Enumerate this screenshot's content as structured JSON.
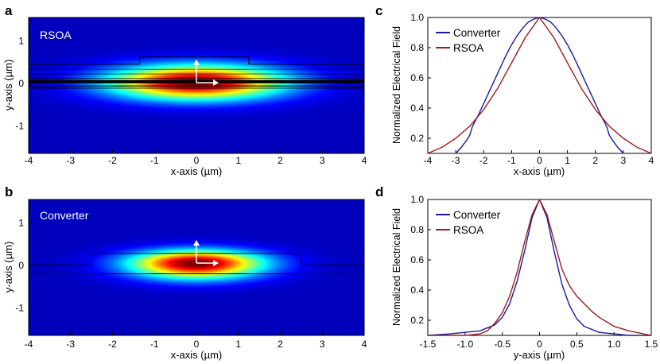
{
  "chart_data": [
    {
      "panel": "a",
      "type": "heatmap",
      "title": "RSOA",
      "xlabel": "x-axis (µm)",
      "ylabel": "y-axis (µm)",
      "xlim": [
        -4,
        4
      ],
      "ylim": [
        -1.65,
        1.55
      ],
      "xticks": [
        "-4",
        "-3",
        "-2",
        "-1",
        "0",
        "1",
        "2",
        "3",
        "4"
      ],
      "yticks": [
        "1",
        "0",
        "-1"
      ],
      "mode": {
        "center_x": 0,
        "center_y": 0.02,
        "sigma_x": 1.45,
        "sigma_y_up": 0.28,
        "sigma_y_down": 0.28
      },
      "outline": [
        [
          -4,
          0.45
        ],
        [
          -1.35,
          0.45
        ],
        [
          -1.35,
          0.62
        ],
        [
          1.25,
          0.62
        ],
        [
          1.25,
          0.45
        ],
        [
          4,
          0.45
        ],
        [
          4,
          -0.08
        ],
        [
          -4,
          -0.08
        ],
        [
          -4,
          0.45
        ]
      ],
      "layers_y": [
        0.33,
        0.22,
        0.12,
        0.04,
        -0.05,
        -0.12
      ]
    },
    {
      "panel": "b",
      "type": "heatmap",
      "title": "Converter",
      "xlabel": "x-axis (µm)",
      "ylabel": "y-axis (µm)",
      "xlim": [
        -4,
        4
      ],
      "ylim": [
        -1.65,
        1.55
      ],
      "xticks": [
        "-4",
        "-3",
        "-2",
        "-1",
        "0",
        "1",
        "2",
        "3",
        "4"
      ],
      "yticks": [
        "1",
        "0",
        "-1"
      ],
      "mode": {
        "center_x": 0,
        "center_y": 0.05,
        "sigma_x": 1.1,
        "sigma_y_up": 0.21,
        "sigma_y_down": 0.25
      },
      "outline": [
        [
          -4,
          0
        ],
        [
          -2.5,
          0
        ],
        [
          -2.5,
          0.28
        ],
        [
          2.5,
          0.28
        ],
        [
          2.5,
          0
        ],
        [
          4,
          0
        ],
        [
          4,
          -0.2
        ],
        [
          -4,
          -0.2
        ],
        [
          -4,
          0
        ]
      ],
      "layers_y": []
    },
    {
      "panel": "c",
      "type": "line",
      "xlabel": "x-axis (µm)",
      "ylabel": "Normalized Electrical Field",
      "xlim": [
        -4,
        4
      ],
      "ylim": [
        0.1,
        1.0
      ],
      "xticks": [
        "-4",
        "-3",
        "-2",
        "-1",
        "0",
        "1",
        "2",
        "3",
        "4"
      ],
      "yticks": [
        "0.2",
        "0.4",
        "0.6",
        "0.8",
        "1.0"
      ],
      "legend": "top-left",
      "series": [
        {
          "name": "Converter",
          "color": "#1a1a9c",
          "x": [
            -3.0,
            -2.8,
            -2.6,
            -2.5,
            -2.4,
            -2.2,
            -2.0,
            -1.8,
            -1.6,
            -1.4,
            -1.2,
            -1.0,
            -0.8,
            -0.6,
            -0.4,
            -0.2,
            0.0,
            0.2,
            0.4,
            0.6,
            0.8,
            1.0,
            1.2,
            1.4,
            1.6,
            1.8,
            2.0,
            2.2,
            2.4,
            2.5,
            2.6,
            2.8,
            3.0
          ],
          "y": [
            0.1,
            0.14,
            0.19,
            0.22,
            0.28,
            0.35,
            0.43,
            0.51,
            0.59,
            0.67,
            0.75,
            0.82,
            0.88,
            0.93,
            0.97,
            0.99,
            1.0,
            0.99,
            0.97,
            0.93,
            0.88,
            0.82,
            0.75,
            0.67,
            0.59,
            0.51,
            0.43,
            0.35,
            0.28,
            0.22,
            0.19,
            0.14,
            0.1
          ]
        },
        {
          "name": "RSOA",
          "color": "#a01a1a",
          "x": [
            -4.0,
            -3.5,
            -3.0,
            -2.5,
            -2.0,
            -1.5,
            -1.0,
            -0.5,
            0.0,
            0.5,
            1.0,
            1.5,
            2.0,
            2.5,
            3.0,
            3.5,
            4.0
          ],
          "y": [
            0.1,
            0.14,
            0.2,
            0.28,
            0.39,
            0.53,
            0.7,
            0.87,
            1.0,
            0.87,
            0.7,
            0.53,
            0.39,
            0.28,
            0.2,
            0.14,
            0.1
          ]
        }
      ]
    },
    {
      "panel": "d",
      "type": "line",
      "xlabel": "y-axis (µm)",
      "ylabel": "Normalized Electrical Field",
      "xlim": [
        -1.5,
        1.5
      ],
      "ylim": [
        0.1,
        1.0
      ],
      "xticks": [
        "-1.5",
        "-1.0",
        "-0.5",
        "0",
        "0.5",
        "1.0",
        "1.5"
      ],
      "yticks": [
        "0.2",
        "0.4",
        "0.6",
        "0.8",
        "1.0"
      ],
      "legend": "top-left",
      "series": [
        {
          "name": "Converter",
          "color": "#1a1a9c",
          "x": [
            -1.5,
            -1.2,
            -1.0,
            -0.8,
            -0.6,
            -0.5,
            -0.4,
            -0.3,
            -0.2,
            -0.1,
            0.0,
            0.1,
            0.2,
            0.3,
            0.4,
            0.5,
            0.6,
            0.8,
            1.0,
            1.2,
            1.5
          ],
          "y": [
            0.1,
            0.11,
            0.12,
            0.13,
            0.17,
            0.22,
            0.31,
            0.46,
            0.66,
            0.88,
            1.0,
            0.88,
            0.65,
            0.44,
            0.3,
            0.21,
            0.16,
            0.12,
            0.11,
            0.1,
            0.1
          ]
        },
        {
          "name": "RSOA",
          "color": "#a01a1a",
          "x": [
            -1.5,
            -1.0,
            -0.8,
            -0.7,
            -0.6,
            -0.5,
            -0.4,
            -0.3,
            -0.2,
            -0.1,
            0.0,
            0.1,
            0.2,
            0.3,
            0.4,
            0.5,
            0.6,
            0.7,
            0.8,
            1.0,
            1.2,
            1.5
          ],
          "y": [
            0.1,
            0.1,
            0.11,
            0.13,
            0.18,
            0.25,
            0.36,
            0.52,
            0.72,
            0.9,
            1.0,
            0.9,
            0.72,
            0.54,
            0.43,
            0.36,
            0.31,
            0.26,
            0.22,
            0.16,
            0.13,
            0.1
          ]
        }
      ]
    }
  ]
}
